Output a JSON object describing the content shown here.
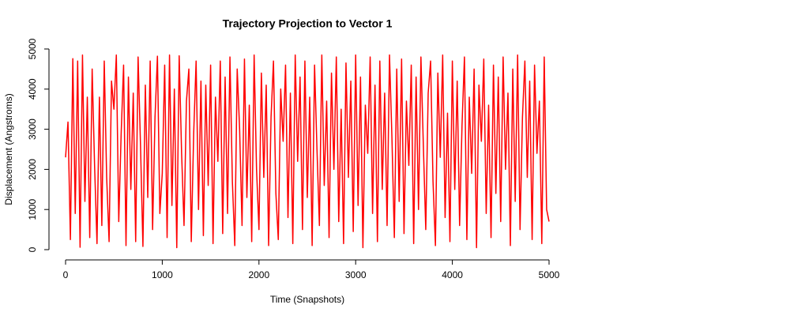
{
  "chart_data": {
    "type": "line",
    "title": "Trajectory Projection to Vector 1",
    "x_label": "Time (Snapshots)",
    "y_label": "Displacement (Angstroms)",
    "x": [
      0,
      25,
      50,
      75,
      100,
      125,
      150,
      175,
      200,
      225,
      250,
      275,
      300,
      325,
      350,
      375,
      400,
      425,
      450,
      475,
      500,
      525,
      550,
      575,
      600,
      625,
      650,
      675,
      700,
      725,
      750,
      775,
      800,
      825,
      850,
      875,
      900,
      925,
      950,
      975,
      1000,
      1025,
      1050,
      1075,
      1100,
      1125,
      1150,
      1175,
      1200,
      1225,
      1250,
      1275,
      1300,
      1325,
      1350,
      1375,
      1400,
      1425,
      1450,
      1475,
      1500,
      1525,
      1550,
      1575,
      1600,
      1625,
      1650,
      1675,
      1700,
      1725,
      1750,
      1775,
      1800,
      1825,
      1850,
      1875,
      1900,
      1925,
      1950,
      1975,
      2000,
      2025,
      2050,
      2075,
      2100,
      2125,
      2150,
      2175,
      2200,
      2225,
      2250,
      2275,
      2300,
      2325,
      2350,
      2375,
      2400,
      2425,
      2450,
      2475,
      2500,
      2525,
      2550,
      2575,
      2600,
      2625,
      2650,
      2675,
      2700,
      2725,
      2750,
      2775,
      2800,
      2825,
      2850,
      2875,
      2900,
      2925,
      2950,
      2975,
      3000,
      3025,
      3050,
      3075,
      3100,
      3125,
      3150,
      3175,
      3200,
      3225,
      3250,
      3275,
      3300,
      3325,
      3350,
      3375,
      3400,
      3425,
      3450,
      3475,
      3500,
      3525,
      3550,
      3575,
      3600,
      3625,
      3650,
      3675,
      3700,
      3725,
      3750,
      3775,
      3800,
      3825,
      3850,
      3875,
      3900,
      3925,
      3950,
      3975,
      4000,
      4025,
      4050,
      4075,
      4100,
      4125,
      4150,
      4175,
      4200,
      4225,
      4250,
      4275,
      4300,
      4325,
      4350,
      4375,
      4400,
      4425,
      4450,
      4475,
      4500,
      4525,
      4550,
      4575,
      4600,
      4625,
      4650,
      4675,
      4700,
      4725,
      4750,
      4775,
      4800,
      4825,
      4850,
      4875,
      4900,
      4925,
      4950,
      4975,
      5000
    ],
    "series": [
      {
        "name": "Vector 1",
        "color": "#ff0000",
        "values": [
          2300,
          3180,
          250,
          4760,
          900,
          4700,
          60,
          4850,
          1200,
          3800,
          300,
          4500,
          2100,
          150,
          3800,
          600,
          4700,
          1800,
          200,
          4200,
          3500,
          4850,
          700,
          2900,
          4600,
          100,
          4300,
          1500,
          3900,
          200,
          4800,
          2600,
          80,
          4100,
          1300,
          4700,
          500,
          3300,
          4820,
          900,
          1900,
          4600,
          300,
          4850,
          1100,
          4000,
          50,
          4830,
          2400,
          600,
          3700,
          4500,
          200,
          2900,
          4700,
          1000,
          4200,
          350,
          4100,
          1600,
          4600,
          150,
          3800,
          2200,
          4700,
          400,
          4300,
          900,
          4800,
          1700,
          100,
          4500,
          3000,
          600,
          4750,
          1300,
          3600,
          200,
          4850,
          2000,
          500,
          4400,
          1800,
          4100,
          100,
          3300,
          4700,
          1400,
          250,
          4000,
          2700,
          4600,
          800,
          3900,
          150,
          4850,
          2200,
          4300,
          500,
          4700,
          1300,
          3800,
          100,
          4600,
          2500,
          600,
          4850,
          1600,
          3700,
          300,
          4400,
          2000,
          4800,
          700,
          3500,
          150,
          4650,
          1800,
          4200,
          450,
          4850,
          1100,
          4300,
          50,
          3600,
          2400,
          4800,
          900,
          4100,
          200,
          4700,
          1500,
          3900,
          600,
          4850,
          2800,
          300,
          4500,
          1200,
          4750,
          400,
          3700,
          2100,
          4600,
          150,
          4300,
          1000,
          4800,
          2600,
          500,
          3900,
          4700,
          1700,
          100,
          4400,
          2300,
          4850,
          800,
          3400,
          200,
          4700,
          1500,
          4200,
          600,
          3100,
          4800,
          250,
          3800,
          1900,
          4500,
          50,
          4100,
          2700,
          4750,
          900,
          3600,
          300,
          4600,
          1400,
          4300,
          700,
          4800,
          2000,
          3900,
          100,
          4500,
          1200,
          4850,
          500,
          3300,
          4700,
          1800,
          4200,
          250,
          4600,
          2400,
          3700,
          150,
          4800,
          1000,
          700
        ]
      }
    ],
    "xlim": [
      0,
      5000
    ],
    "ylim": [
      0,
      5000
    ],
    "xticks": [
      0,
      1000,
      2000,
      3000,
      4000,
      5000
    ],
    "yticks": [
      0,
      1000,
      2000,
      3000,
      4000,
      5000
    ],
    "grid": false
  }
}
